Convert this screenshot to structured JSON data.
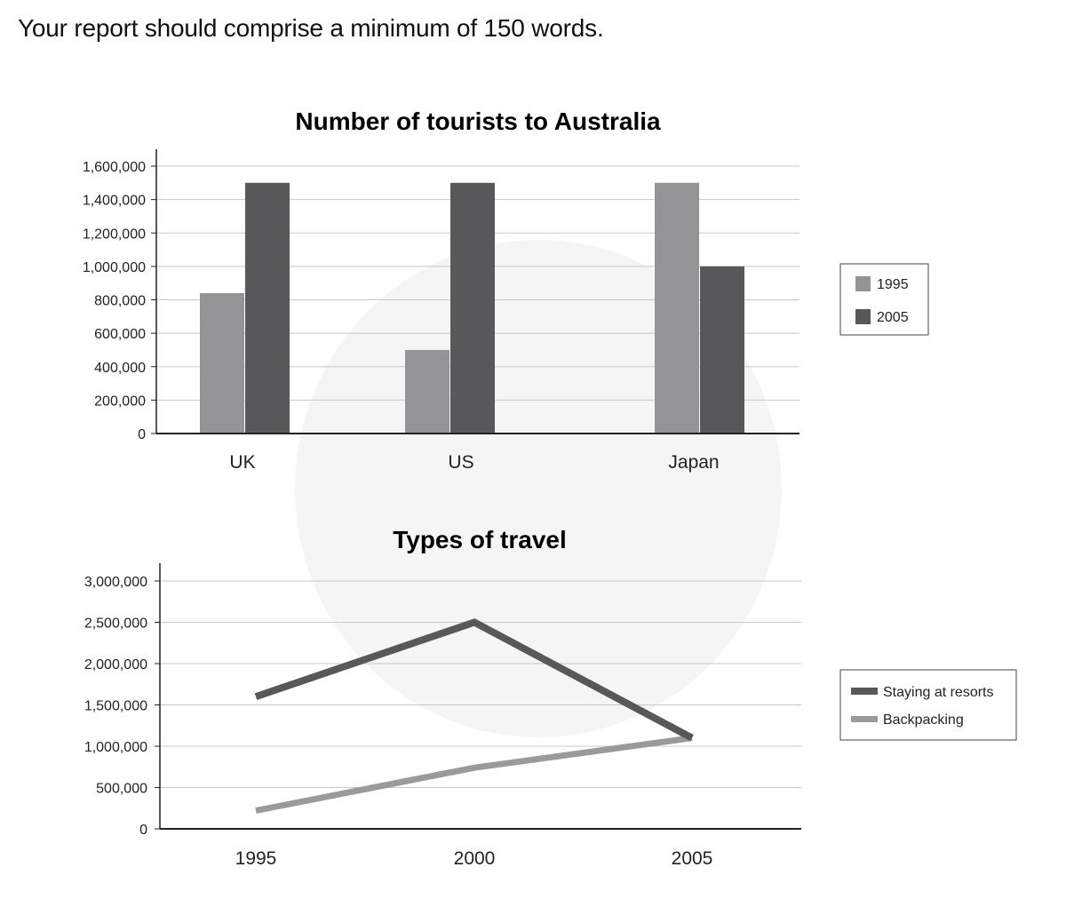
{
  "instruction": "Your report should comprise a minimum of 150 words.",
  "chart_data": [
    {
      "type": "bar",
      "title": "Number of tourists to Australia",
      "categories": [
        "UK",
        "US",
        "Japan"
      ],
      "series": [
        {
          "name": "1995",
          "values": [
            840000,
            500000,
            1500000
          ],
          "color": "#949496"
        },
        {
          "name": "2005",
          "values": [
            1500000,
            1500000,
            1000000
          ],
          "color": "#58585a"
        }
      ],
      "ylim": [
        0,
        1600000
      ],
      "yticks": [
        "0",
        "200,000",
        "400,000",
        "600,000",
        "800,000",
        "1,000,000",
        "1,200,000",
        "1,400,000",
        "1,600,000"
      ],
      "grid": true,
      "legend": "right"
    },
    {
      "type": "line",
      "title": "Types of travel",
      "x": [
        "1995",
        "2000",
        "2005"
      ],
      "series": [
        {
          "name": "Staying at resorts",
          "values": [
            1600000,
            2500000,
            1100000
          ],
          "color": "#58585a"
        },
        {
          "name": "Backpacking",
          "values": [
            220000,
            740000,
            1100000
          ],
          "color": "#9a9a9c"
        }
      ],
      "ylim": [
        0,
        3000000
      ],
      "yticks": [
        "0",
        "500,000",
        "1,000,000",
        "1,500,000",
        "2,000,000",
        "2,500,000",
        "3,000,000"
      ],
      "grid": true,
      "legend": "right"
    }
  ]
}
